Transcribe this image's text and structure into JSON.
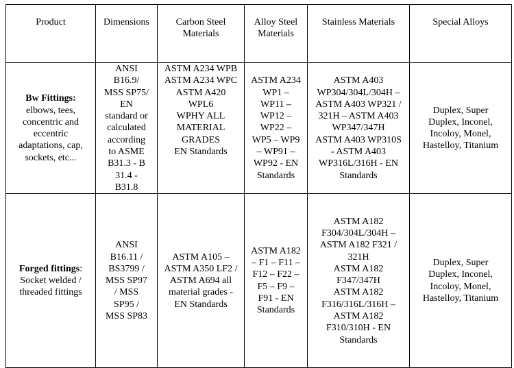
{
  "headers": [
    "Product",
    "Dimensions",
    "Carbon Steel\nMaterials",
    "Alloy Steel\nMaterials",
    "Stainless Materials",
    "Special Alloys"
  ],
  "rows": [
    {
      "product_title": "Bw Fittings:",
      "product_title_suffix": "",
      "product_desc": "elbows, tees,\nconcentric and\neccentric\nadaptations, cap,\nsockets, etc...",
      "dimensions": "ANSI\nB16.9/\nMSS SP75/\nEN\nstandard or\ncalculated\naccording\nto ASME\nB31.3 - B\n31.4 -\nB31.8",
      "carbon_steel": "ASTM A234 WPB\nASTM A234 WPC\nASTM A420\nWPL6\nWPHY ALL\nMATERIAL\nGRADES\nEN Standards",
      "alloy_steel": "ASTM A234\nWP1 –\nWP11 –\nWP12 –\nWP22 –\nWP5 – WP9\n– WP91 –\nWP92 - EN\nStandards",
      "stainless": "ASTM A403\nWP304/304L/304H –\nASTM A403 WP321 /\n321H – ASTM A403\nWP347/347H\nASTM A403 WP310S\n- ASTM A403\nWP316L/316H - EN\nStandards",
      "special_alloys": "Duplex, Super\nDuplex, Inconel,\nIncoloy, Monel,\nHastelloy, Titanium"
    },
    {
      "product_title": "Forged fittings",
      "product_title_suffix": ":",
      "product_desc": "Socket welded /\nthreaded fittings",
      "dimensions": "ANSI\nB16.11 /\nBS3799 /\nMSS SP97\n/ MSS\nSP95 /\nMSS SP83",
      "carbon_steel": "ASTM A105 –\nASTM A350 LF2 /\nASTM A694 all\nmaterial grades -\nEN Standards",
      "alloy_steel": "ASTM A182\n– F1 – F11 –\nF12 – F22 –\nF5 – F9 –\nF91 - EN\nStandards",
      "stainless": "ASTM A182\nF304/304L/304H –\nASTM A182 F321 /\n321H\nASTM A182\nF347/347H\nASTM A182\nF316/316L/316H –\nASTM A182\nF310/310H - EN\nStandards",
      "special_alloys": "Duplex, Super\nDuplex, Inconel,\nIncoloy, Monel,\nHastelloy, Titanium"
    }
  ]
}
